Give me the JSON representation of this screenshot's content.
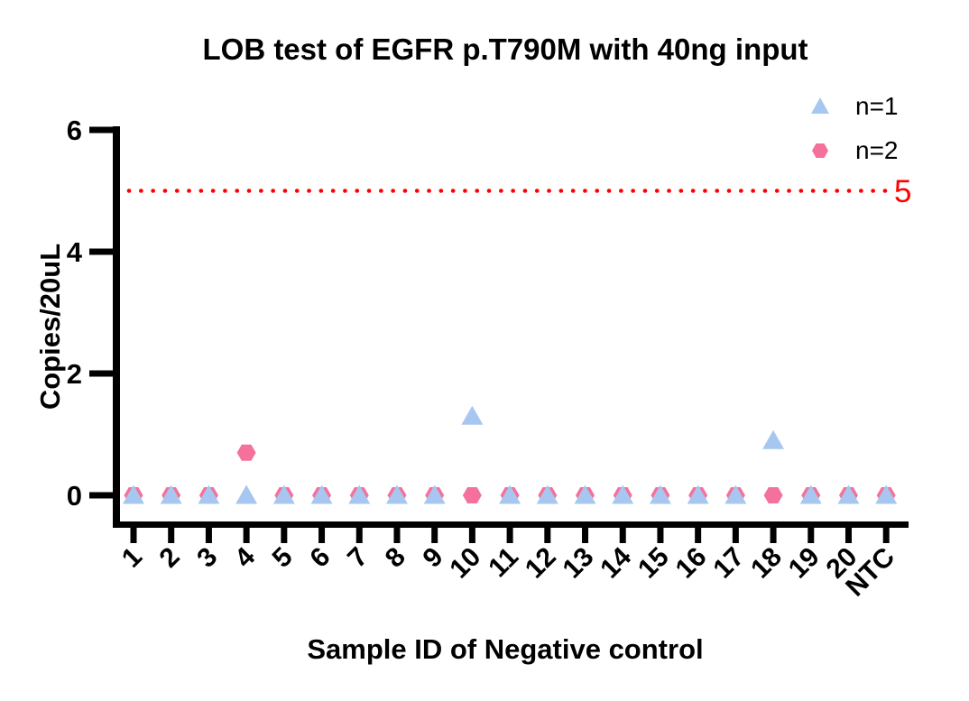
{
  "chart_data": {
    "type": "scatter",
    "title": "LOB test of EGFR p.T790M with 40ng input",
    "xlabel": "Sample ID of Negative control",
    "ylabel": "Copies/20uL",
    "categories": [
      "1",
      "2",
      "3",
      "4",
      "5",
      "6",
      "7",
      "8",
      "9",
      "10",
      "11",
      "12",
      "13",
      "14",
      "15",
      "16",
      "17",
      "18",
      "19",
      "20",
      "NTC"
    ],
    "yticks": [
      0,
      2,
      4,
      6
    ],
    "ylim": [
      0,
      6
    ],
    "grid": false,
    "legend_position": "top-right",
    "series": [
      {
        "name": "n=1",
        "marker": "triangle",
        "color": "#A8C7F0",
        "values": [
          0,
          0,
          0,
          0,
          0,
          0,
          0,
          0,
          0,
          1.3,
          0,
          0,
          0,
          0,
          0,
          0,
          0,
          0.9,
          0,
          0,
          0
        ]
      },
      {
        "name": "n=2",
        "marker": "hexagon",
        "color": "#F4719C",
        "values": [
          0,
          0,
          0,
          0.7,
          0,
          0,
          0,
          0,
          0,
          0,
          0,
          0,
          0,
          0,
          0,
          0,
          0,
          0,
          0,
          0,
          0
        ]
      }
    ],
    "threshold": {
      "value": 5,
      "label": "5",
      "color": "#FF0000",
      "style": "dotted"
    }
  },
  "colors": {
    "axis": "#000000",
    "text": "#000000",
    "background": "#FFFFFF",
    "n1_marker": "#A8C7F0",
    "n2_marker": "#F4719C",
    "threshold": "#FF0000"
  }
}
